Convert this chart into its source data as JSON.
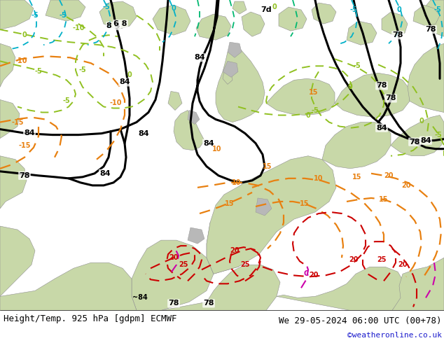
{
  "title_left": "Height/Temp. 925 hPa [gdpm] ECMWF",
  "title_right": "We 29-05-2024 06:00 UTC (00+78)",
  "credit": "©weatheronline.co.uk",
  "figsize": [
    6.34,
    4.9
  ],
  "dpi": 100,
  "bg_map": "#d5dfc8",
  "bg_sea": "#dcdcdc",
  "land_green": "#c8d8a8",
  "land_gray": "#c0c0c0",
  "bottom_bar": "#ffffff",
  "title_fontsize": 9,
  "credit_fontsize": 8,
  "height_color": "#000000",
  "temp_orange": "#E88010",
  "temp_red": "#CC0000",
  "temp_magenta": "#CC00AA",
  "temp_yellow_green": "#90C020",
  "temp_cyan": "#00B0C8",
  "temp_green": "#00B870"
}
